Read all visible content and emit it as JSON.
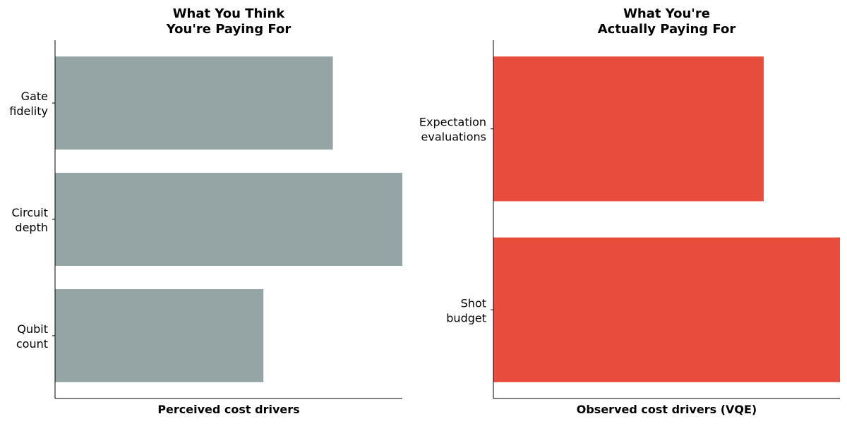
{
  "chart_data": [
    {
      "type": "bar",
      "orientation": "horizontal",
      "title": [
        "What You Think",
        "You're Paying For"
      ],
      "xlabel": "Perceived cost drivers",
      "ylabel": "",
      "categories": [
        [
          "Gate",
          "fidelity"
        ],
        [
          "Circuit",
          "depth"
        ],
        [
          "Qubit",
          "count"
        ]
      ],
      "values": [
        0.8,
        1.0,
        0.6
      ],
      "xlim": [
        0,
        1.0
      ],
      "color": "#95a5a6",
      "grid": false,
      "x_ticks_visible": false
    },
    {
      "type": "bar",
      "orientation": "horizontal",
      "title": [
        "What You're",
        "Actually Paying For"
      ],
      "xlabel": "Observed cost drivers (VQE)",
      "ylabel": "",
      "categories": [
        [
          "Expectation",
          "evaluations"
        ],
        [
          "Shot",
          "budget"
        ]
      ],
      "values": [
        0.78,
        1.0
      ],
      "xlim": [
        0,
        1.0
      ],
      "color": "#e74c3c",
      "grid": false,
      "x_ticks_visible": false
    }
  ]
}
